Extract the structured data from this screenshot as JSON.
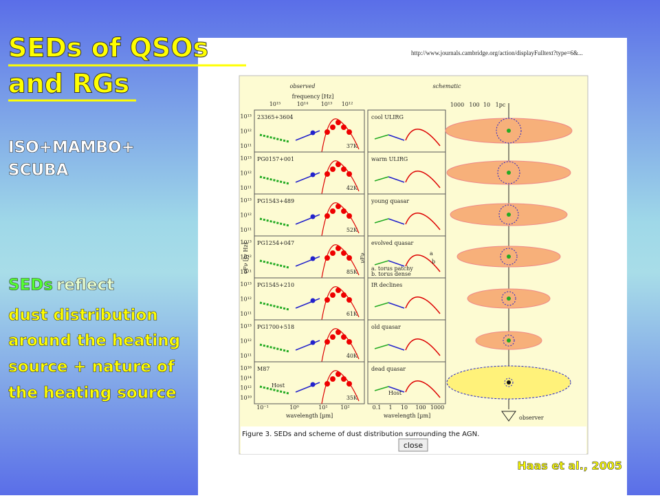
{
  "slide": {
    "title_lines": [
      "SEDs of QSOs",
      "and RGs"
    ],
    "subtitle_lines": [
      "ISO+MAMBO+",
      "SCUBA"
    ],
    "note_lead": "SEDs",
    "note_lead_rest": "reflect",
    "note_lines": [
      "dust distribution",
      "around the heating",
      "source + nature of",
      "the heating source"
    ],
    "credit": "Haas et al., 2005"
  },
  "screenshot": {
    "url": "http://www.journals.cambridge.org/action/displayFulltext?type=6&...",
    "caption": "Figure 3. SEDs and scheme of dust distribution surrounding the AGN.",
    "button": "close",
    "figure": {
      "observed_header": "observed",
      "schematic_header": "schematic",
      "frequency_title": "frequency [Hz]",
      "frequency_ticks": [
        "10¹⁵",
        "10¹⁴",
        "10¹³",
        "10¹²"
      ],
      "pc_ticks": [
        "1000",
        "100",
        "10",
        "1pc"
      ],
      "y_title": "νFν [Jy Hz]",
      "schematic_y_title": "νFν",
      "wavelength_title": "wavelength [µm]",
      "wavelength_ticks": [
        "10⁻¹",
        "10⁰",
        "10¹",
        "10²"
      ],
      "schematic_wavelength_ticks": [
        "0.1",
        "1",
        "10",
        "100",
        "1000"
      ],
      "observer": "observer",
      "sources": [
        {
          "name": "23365+3604",
          "temp": "37K",
          "ylabels": [
            "10¹³",
            "10¹²",
            "10¹¹"
          ]
        },
        {
          "name": "PG0157+001",
          "temp": "42K",
          "ylabels": [
            "10¹³",
            "10¹²",
            "10¹¹"
          ]
        },
        {
          "name": "PG1543+489",
          "temp": "52K",
          "ylabels": [
            "10¹³",
            "10¹²",
            "10¹¹"
          ]
        },
        {
          "name": "PG1254+047",
          "temp": "85K",
          "ylabels": [
            "10¹³",
            "10¹²",
            "10¹¹"
          ]
        },
        {
          "name": "PG1545+210",
          "temp": "61K",
          "ylabels": [
            "10¹³",
            "10¹²",
            "10¹¹"
          ]
        },
        {
          "name": "PG1700+518",
          "temp": "40K",
          "ylabels": [
            "10¹³",
            "10¹²",
            "10¹¹"
          ]
        },
        {
          "name": "M87",
          "temp": "35K",
          "ylabels": [
            "10¹⁶",
            "10¹⁴",
            "10¹²",
            "10¹⁰"
          ],
          "host": "Host"
        }
      ],
      "schemes": [
        {
          "name": "cool ULIRG"
        },
        {
          "name": "warm ULIRG"
        },
        {
          "name": "young quasar"
        },
        {
          "name": "evolved quasar",
          "notes": [
            "a",
            "b",
            "a. torus patchy",
            "b. torus dense"
          ]
        },
        {
          "name": "IR declines"
        },
        {
          "name": "old quasar"
        },
        {
          "name": "dead quasar",
          "host": "Host"
        }
      ]
    }
  }
}
